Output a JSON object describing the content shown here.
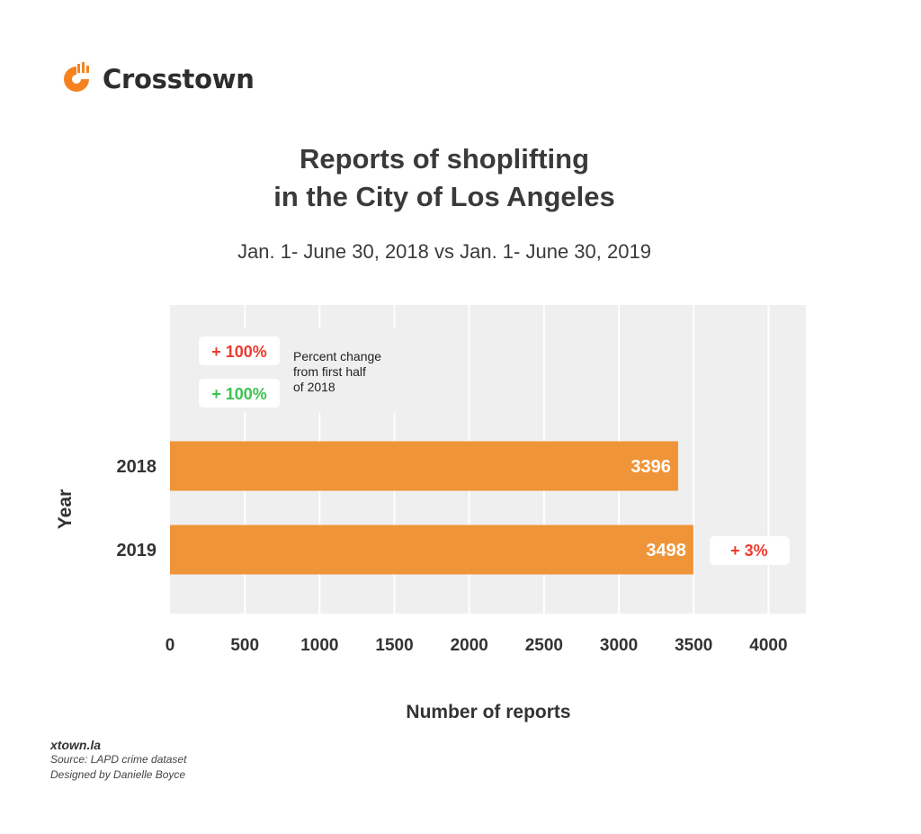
{
  "brand": {
    "logo_icon": "crosstown-logo-icon",
    "name": "Crosstown",
    "accent_color": "#f5821f"
  },
  "header": {
    "title_line1": "Reports of shoplifting",
    "title_line2": "in the City of Los Angeles",
    "subtitle": "Jan. 1- June 30, 2018 vs Jan. 1- June 30, 2019"
  },
  "legend": {
    "increase_label": "+ 100%",
    "decrease_label": "+ 100%",
    "increase_color": "#ee3b2f",
    "decrease_color": "#3cc44f",
    "description_lines": [
      "Percent change",
      "from first half",
      "of 2018"
    ]
  },
  "chart_data": {
    "type": "bar",
    "orientation": "horizontal",
    "categories": [
      "2018",
      "2019"
    ],
    "values": [
      3396,
      3498
    ],
    "data_labels": [
      "3396",
      "3498"
    ],
    "change_labels": [
      null,
      "+ 3%"
    ],
    "change_color": "#ee3b2f",
    "bar_color": "#ef9438",
    "background_color": "#efefef",
    "xlabel": "Number of reports",
    "ylabel": "Year",
    "xlim": [
      0,
      4250
    ],
    "xticks": [
      0,
      500,
      1000,
      1500,
      2000,
      2500,
      3000,
      3500,
      4000
    ],
    "xtick_labels": [
      "0",
      "500",
      "1000",
      "1500",
      "2000",
      "2500",
      "3000",
      "3500",
      "4000"
    ],
    "grid": "vertical"
  },
  "footer": {
    "site": "xtown.la",
    "source": "Source: LAPD crime dataset",
    "credit": "Designed by Danielle Boyce"
  }
}
